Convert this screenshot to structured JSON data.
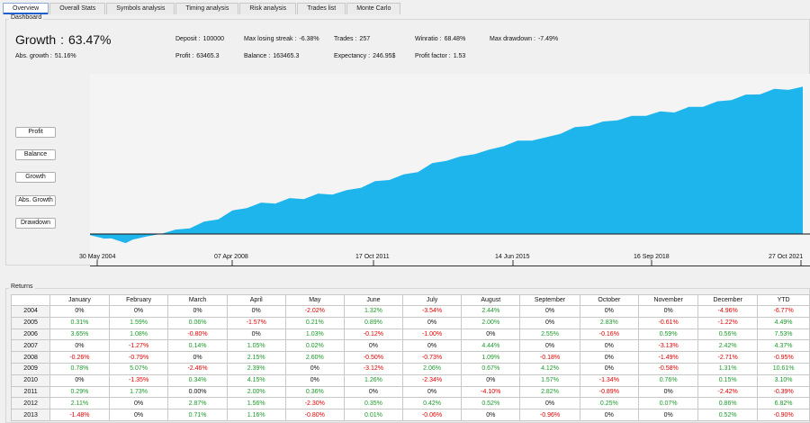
{
  "tabs": [
    {
      "label": "Overview",
      "active": true
    },
    {
      "label": "Overall Stats",
      "active": false
    },
    {
      "label": "Symbols analysis",
      "active": false
    },
    {
      "label": "Timing analysis",
      "active": false
    },
    {
      "label": "Risk analysis",
      "active": false
    },
    {
      "label": "Trades list",
      "active": false
    },
    {
      "label": "Monte Carlo",
      "active": false
    }
  ],
  "dashboard": {
    "title": "Dashboard",
    "growth_label": "Growth",
    "growth_sep": ":",
    "growth_value": "63.47%",
    "abs_growth_label": "Abs. growth :",
    "abs_growth_value": "51.16%",
    "deposit_label": "Deposit :",
    "deposit_value": "100000",
    "profit_label": "Profit :",
    "profit_value": "63465.3",
    "max_losing_streak_label": "Max losing streak :",
    "max_losing_streak_value": "-6.38%",
    "balance_label": "Balance :",
    "balance_value": "163465.3",
    "trades_label": "Trades :",
    "trades_value": "257",
    "expectancy_label": "Expectancy :",
    "expectancy_value": "246.95$",
    "winratio_label": "Winratio :",
    "winratio_value": "68.48%",
    "profit_factor_label": "Profit factor :",
    "profit_factor_value": "1.53",
    "max_drawdown_label": "Max drawdown :",
    "max_drawdown_value": "-7.49%"
  },
  "side_buttons": {
    "profit": "Profit",
    "balance": "Balance",
    "growth": "Growth",
    "abs_growth": "Abs. Growth",
    "drawdown": "Drawdown"
  },
  "chart_data": {
    "type": "area",
    "fill_color": "#1eb4ec",
    "x_tick_labels": [
      "30 May 2004",
      "07 Apr 2008",
      "17 Oct 2011",
      "14 Jun 2015",
      "16 Sep 2018",
      "27 Oct 2021"
    ],
    "x": [
      0,
      0.02,
      0.03,
      0.05,
      0.06,
      0.08,
      0.1,
      0.12,
      0.14,
      0.16,
      0.18,
      0.2,
      0.22,
      0.24,
      0.26,
      0.28,
      0.3,
      0.32,
      0.34,
      0.36,
      0.38,
      0.4,
      0.42,
      0.44,
      0.46,
      0.48,
      0.5,
      0.52,
      0.54,
      0.56,
      0.58,
      0.6,
      0.62,
      0.64,
      0.66,
      0.68,
      0.7,
      0.72,
      0.74,
      0.76,
      0.78,
      0.8,
      0.82,
      0.84,
      0.86,
      0.88,
      0.9,
      0.92,
      0.94,
      0.96,
      0.98,
      1.0
    ],
    "y": [
      0,
      -2.5,
      -1.5,
      -4.5,
      -2,
      -1.5,
      0.5,
      1.5,
      3,
      5,
      7,
      10,
      12,
      13.5,
      14,
      15.5,
      16,
      17.5,
      18,
      19,
      21,
      23,
      24.5,
      26,
      28,
      31,
      33,
      34,
      36,
      37,
      39.5,
      41,
      42,
      42.5,
      45,
      47,
      48.5,
      49.5,
      51,
      52,
      53,
      54,
      54.5,
      56,
      57,
      58.5,
      60,
      61.5,
      62.5,
      64,
      64.5,
      65
    ],
    "ylim": [
      -8,
      68
    ]
  },
  "returns": {
    "title": "Returns",
    "columns": [
      "",
      "January",
      "February",
      "March",
      "April",
      "May",
      "June",
      "July",
      "August",
      "September",
      "October",
      "November",
      "December",
      "YTD"
    ],
    "rows": [
      {
        "year": "2004",
        "cells": [
          "0%",
          "0%",
          "0%",
          "0%",
          "-2.02%",
          "1.32%",
          "-3.54%",
          "2.44%",
          "0%",
          "0%",
          "0%",
          "-4.96%",
          "-6.77%"
        ]
      },
      {
        "year": "2005",
        "cells": [
          "0.31%",
          "1.59%",
          "0.06%",
          "-1.57%",
          "0.21%",
          "0.89%",
          "0%",
          "2.00%",
          "0%",
          "2.83%",
          "-0.61%",
          "-1.22%",
          "4.49%"
        ]
      },
      {
        "year": "2006",
        "cells": [
          "3.65%",
          "1.08%",
          "-0.80%",
          "0%",
          "1.03%",
          "-0.12%",
          "-1.00%",
          "0%",
          "2.55%",
          "-0.16%",
          "0.59%",
          "0.56%",
          "7.53%"
        ]
      },
      {
        "year": "2007",
        "cells": [
          "0%",
          "-1.27%",
          "0.14%",
          "1.05%",
          "0.02%",
          "0%",
          "0%",
          "4.44%",
          "0%",
          "0%",
          "-3.13%",
          "2.42%",
          "4.37%"
        ]
      },
      {
        "year": "2008",
        "cells": [
          "-0.26%",
          "-0.79%",
          "0%",
          "2.15%",
          "2.60%",
          "-0.50%",
          "-0.73%",
          "1.09%",
          "-0.18%",
          "0%",
          "-1.49%",
          "-2.71%",
          "-0.95%"
        ]
      },
      {
        "year": "2009",
        "cells": [
          "0.78%",
          "5.07%",
          "-2.46%",
          "2.39%",
          "0%",
          "-3.12%",
          "2.06%",
          "0.67%",
          "4.12%",
          "0%",
          "-0.58%",
          "1.31%",
          "10.61%"
        ]
      },
      {
        "year": "2010",
        "cells": [
          "0%",
          "-1.35%",
          "0.34%",
          "4.15%",
          "0%",
          "1.26%",
          "-2.34%",
          "0%",
          "1.57%",
          "-1.34%",
          "0.76%",
          "0.15%",
          "3.10%"
        ]
      },
      {
        "year": "2011",
        "cells": [
          "0.29%",
          "1.73%",
          "0.00%",
          "2.00%",
          "0.36%",
          "0%",
          "0%",
          "-4.10%",
          "2.82%",
          "-0.89%",
          "0%",
          "-2.42%",
          "-0.39%"
        ]
      },
      {
        "year": "2012",
        "cells": [
          "2.11%",
          "0%",
          "2.87%",
          "1.56%",
          "-2.30%",
          "0.35%",
          "0.42%",
          "0.52%",
          "0%",
          "0.25%",
          "0.07%",
          "0.86%",
          "6.82%"
        ]
      },
      {
        "year": "2013",
        "cells": [
          "-1.48%",
          "0%",
          "0.71%",
          "1.16%",
          "-0.80%",
          "0.01%",
          "-0.06%",
          "0%",
          "-0.96%",
          "0%",
          "0%",
          "0.52%",
          "-0.90%"
        ]
      }
    ]
  }
}
